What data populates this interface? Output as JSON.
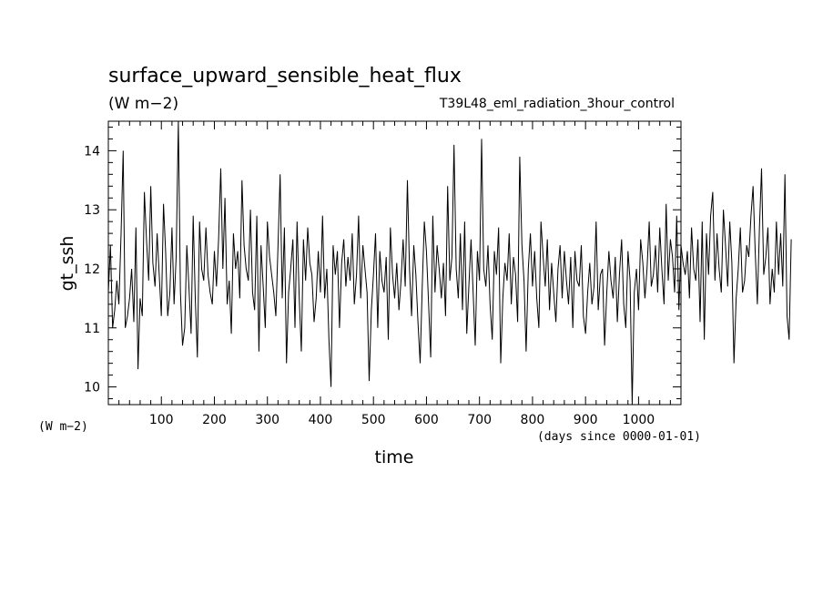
{
  "chart_data": {
    "type": "line",
    "title": "surface_upward_sensible_heat_flux",
    "subtitle_units": "(W m−2)",
    "experiment": "T39L48_eml_radiation_3hour_control",
    "xlabel": "time",
    "x_units": "(days since 0000-01-01)",
    "ylabel": "gt_ssh",
    "y_units": "(W m−2)",
    "xlim": [
      0,
      1080
    ],
    "ylim": [
      9.7,
      14.5
    ],
    "x_ticks": [
      100,
      200,
      300,
      400,
      500,
      600,
      700,
      800,
      900,
      1000
    ],
    "x_tick_labels": [
      "100",
      "200",
      "300",
      "400",
      "500",
      "600",
      "700",
      "800",
      "900",
      "1000"
    ],
    "y_ticks": [
      10,
      11,
      12,
      13,
      14
    ],
    "y_tick_labels": [
      "10",
      "11",
      "12",
      "13",
      "14"
    ],
    "grid": false,
    "series": [
      {
        "color": "#000000",
        "x_start": 0,
        "x_step": 4,
        "y": [
          11.6,
          12.4,
          11.0,
          11.3,
          11.8,
          11.4,
          12.6,
          14.0,
          11.0,
          11.2,
          11.5,
          12.0,
          11.1,
          12.7,
          10.3,
          11.5,
          11.2,
          13.3,
          12.5,
          11.8,
          13.4,
          12.1,
          11.7,
          12.6,
          11.9,
          11.2,
          13.1,
          12.3,
          11.2,
          11.6,
          12.7,
          11.4,
          12.2,
          14.5,
          11.6,
          10.7,
          11.0,
          12.4,
          11.7,
          10.9,
          12.9,
          11.5,
          10.5,
          12.8,
          12.0,
          11.8,
          12.7,
          11.9,
          11.6,
          11.4,
          12.3,
          11.7,
          12.5,
          13.7,
          12.0,
          13.2,
          11.4,
          11.8,
          10.9,
          12.6,
          12.0,
          12.3,
          11.5,
          13.5,
          12.4,
          12.0,
          11.8,
          13.0,
          11.6,
          11.3,
          12.9,
          10.6,
          12.4,
          11.7,
          11.0,
          12.8,
          12.2,
          11.9,
          11.6,
          11.2,
          12.4,
          13.6,
          11.5,
          12.7,
          10.4,
          11.6,
          12.0,
          12.5,
          11.0,
          12.8,
          11.5,
          10.6,
          12.5,
          11.8,
          12.7,
          12.1,
          11.9,
          11.1,
          11.5,
          12.3,
          11.6,
          12.9,
          11.5,
          12.0,
          10.8,
          10.0,
          12.4,
          11.9,
          12.3,
          11.0,
          12.1,
          12.5,
          11.7,
          12.2,
          11.8,
          12.6,
          11.4,
          11.9,
          12.9,
          11.5,
          12.4,
          12.0,
          11.6,
          10.1,
          11.3,
          11.9,
          12.6,
          11.0,
          12.3,
          11.8,
          11.6,
          12.2,
          10.8,
          12.7,
          11.9,
          11.5,
          12.1,
          11.3,
          11.8,
          12.5,
          11.7,
          13.5,
          12.0,
          11.2,
          12.4,
          11.9,
          11.1,
          10.4,
          11.7,
          12.8,
          12.3,
          11.4,
          10.5,
          12.9,
          11.6,
          12.4,
          12.0,
          11.5,
          12.1,
          11.2,
          13.4,
          11.8,
          12.2,
          14.1,
          12.0,
          11.5,
          12.6,
          11.3,
          12.8,
          10.9,
          11.7,
          12.5,
          11.6,
          10.7,
          12.3,
          11.8,
          14.2,
          12.0,
          11.7,
          12.4,
          11.4,
          10.8,
          12.3,
          11.9,
          12.7,
          10.4,
          11.5,
          12.1,
          11.8,
          12.6,
          11.4,
          12.2,
          11.9,
          11.1,
          13.9,
          12.4,
          11.8,
          10.6,
          12.0,
          12.6,
          11.7,
          12.3,
          11.5,
          11.0,
          12.8,
          12.2,
          11.7,
          12.5,
          11.3,
          12.1,
          11.6,
          11.1,
          12.0,
          12.4,
          11.5,
          12.3,
          11.8,
          11.4,
          12.2,
          11.0,
          12.3,
          11.8,
          11.7,
          12.4,
          11.2,
          10.9,
          11.6,
          12.1,
          11.4,
          11.7,
          12.8,
          11.3,
          11.9,
          12.0,
          10.7,
          11.6,
          12.3,
          11.8,
          11.5,
          12.2,
          11.1,
          11.9,
          12.5,
          11.4,
          11.0,
          12.3,
          11.8,
          9.7,
          11.6,
          12.0,
          11.3,
          12.5,
          12.1,
          11.5,
          12.0,
          12.8,
          11.7,
          11.9,
          12.4,
          11.6,
          12.7,
          12.0,
          11.4,
          13.1,
          11.8,
          12.5,
          12.2,
          11.6,
          12.9,
          11.3,
          12.4,
          12.1,
          11.9,
          12.3,
          11.5,
          12.7,
          12.0,
          11.8,
          12.5,
          11.1,
          12.8,
          10.8,
          12.6,
          11.9,
          12.9,
          13.3,
          11.8,
          12.6,
          12.0,
          11.6,
          13.0,
          12.4,
          11.7,
          12.8,
          12.1,
          10.4,
          11.5,
          12.0,
          12.7,
          11.6,
          11.8,
          12.4,
          12.2,
          12.9,
          13.4,
          12.3,
          11.4,
          12.7,
          13.7,
          11.9,
          12.2,
          12.7,
          11.4,
          12.0,
          11.6,
          12.8,
          11.9,
          12.6,
          11.7,
          13.6,
          11.2,
          10.8,
          12.5
        ]
      }
    ]
  }
}
